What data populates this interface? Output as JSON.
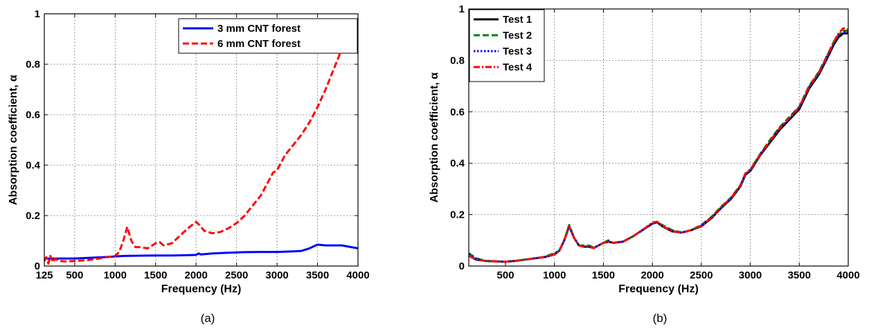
{
  "chart_data": [
    {
      "type": "line",
      "caption": "(a)",
      "xlabel": "Frequency (Hz)",
      "ylabel": "Absorption coefficient, α",
      "xlim": [
        125,
        4000
      ],
      "ylim": [
        0,
        1
      ],
      "xticks": [
        125,
        500,
        1000,
        1500,
        2000,
        2500,
        3000,
        3500,
        4000
      ],
      "yticks": [
        0,
        0.2,
        0.4,
        0.6,
        0.8,
        1
      ],
      "ytick_labels": [
        "0",
        "0.2",
        "0.4",
        "0.6",
        "0.8",
        "1"
      ],
      "grid": true,
      "legend": "top-right",
      "series": [
        {
          "name": "3 mm CNT forest",
          "color": "#0000ff",
          "style": "solid",
          "x": [
            125,
            300,
            500,
            700,
            900,
            1000,
            1100,
            1300,
            1500,
            1700,
            1900,
            2000,
            2030,
            2060,
            2200,
            2400,
            2600,
            2800,
            3000,
            3200,
            3300,
            3400,
            3500,
            3600,
            3800,
            4000
          ],
          "y": [
            0.03,
            0.03,
            0.03,
            0.033,
            0.036,
            0.038,
            0.04,
            0.041,
            0.042,
            0.042,
            0.043,
            0.044,
            0.05,
            0.046,
            0.05,
            0.053,
            0.055,
            0.056,
            0.056,
            0.058,
            0.06,
            0.07,
            0.085,
            0.082,
            0.082,
            0.07
          ]
        },
        {
          "name": "6 mm CNT forest",
          "color": "#ff0000",
          "style": "dashed",
          "x": [
            125,
            150,
            175,
            200,
            230,
            260,
            300,
            400,
            500,
            600,
            700,
            800,
            900,
            1000,
            1050,
            1100,
            1150,
            1200,
            1250,
            1300,
            1400,
            1500,
            1550,
            1600,
            1700,
            1800,
            1900,
            2000,
            2050,
            2100,
            2200,
            2300,
            2400,
            2500,
            2600,
            2700,
            2800,
            2900,
            2950,
            3000,
            3100,
            3200,
            3300,
            3400,
            3500,
            3600,
            3700,
            3800,
            3850,
            3900,
            3950,
            4000
          ],
          "y": [
            0.02,
            0.035,
            0.01,
            0.04,
            0.015,
            0.03,
            0.02,
            0.018,
            0.02,
            0.022,
            0.025,
            0.03,
            0.035,
            0.04,
            0.055,
            0.1,
            0.155,
            0.1,
            0.075,
            0.075,
            0.07,
            0.09,
            0.095,
            0.082,
            0.09,
            0.12,
            0.15,
            0.175,
            0.16,
            0.14,
            0.13,
            0.135,
            0.15,
            0.17,
            0.2,
            0.24,
            0.28,
            0.34,
            0.37,
            0.38,
            0.44,
            0.48,
            0.52,
            0.57,
            0.63,
            0.7,
            0.78,
            0.86,
            0.9,
            0.925,
            0.93,
            0.925
          ]
        }
      ]
    },
    {
      "type": "line",
      "caption": "(b)",
      "xlabel": "Frequency (Hz)",
      "ylabel": "Absorption coefficient, α",
      "xlim": [
        125,
        4000
      ],
      "ylim": [
        0,
        1
      ],
      "xticks": [
        500,
        1000,
        1500,
        2000,
        2500,
        3000,
        3500,
        4000
      ],
      "yticks": [
        0,
        0.2,
        0.4,
        0.6,
        0.8,
        1
      ],
      "ytick_labels": [
        "0",
        "0.2",
        "0.4",
        "0.6",
        "0.8",
        "1"
      ],
      "grid": true,
      "legend": "top-left",
      "series": [
        {
          "name": "Test 1",
          "color": "#000000",
          "style": "solid",
          "x": [
            125,
            200,
            300,
            400,
            500,
            600,
            700,
            800,
            900,
            1000,
            1050,
            1100,
            1150,
            1200,
            1250,
            1300,
            1350,
            1400,
            1450,
            1500,
            1550,
            1600,
            1700,
            1800,
            1900,
            2000,
            2050,
            2100,
            2200,
            2300,
            2400,
            2500,
            2600,
            2700,
            2800,
            2900,
            2950,
            3000,
            3100,
            3200,
            3300,
            3400,
            3500,
            3600,
            3700,
            3800,
            3850,
            3900,
            3950,
            4000
          ],
          "y": [
            0.04,
            0.025,
            0.02,
            0.018,
            0.017,
            0.02,
            0.025,
            0.03,
            0.035,
            0.045,
            0.06,
            0.1,
            0.155,
            0.11,
            0.08,
            0.075,
            0.075,
            0.07,
            0.08,
            0.09,
            0.095,
            0.09,
            0.095,
            0.115,
            0.14,
            0.165,
            0.17,
            0.155,
            0.135,
            0.13,
            0.14,
            0.155,
            0.185,
            0.225,
            0.26,
            0.31,
            0.355,
            0.37,
            0.43,
            0.48,
            0.53,
            0.57,
            0.61,
            0.69,
            0.745,
            0.82,
            0.86,
            0.89,
            0.905,
            0.905
          ]
        },
        {
          "name": "Test 2",
          "color": "#008000",
          "style": "dashed",
          "x": [
            125,
            200,
            300,
            400,
            500,
            600,
            700,
            800,
            900,
            1000,
            1050,
            1100,
            1150,
            1200,
            1250,
            1300,
            1350,
            1400,
            1450,
            1500,
            1550,
            1600,
            1700,
            1800,
            1900,
            2000,
            2050,
            2100,
            2200,
            2300,
            2400,
            2500,
            2600,
            2700,
            2800,
            2900,
            2950,
            3000,
            3100,
            3200,
            3300,
            3400,
            3500,
            3600,
            3700,
            3800,
            3850,
            3900,
            3950,
            4000
          ],
          "y": [
            0.05,
            0.03,
            0.02,
            0.018,
            0.017,
            0.02,
            0.025,
            0.03,
            0.036,
            0.05,
            0.06,
            0.1,
            0.16,
            0.11,
            0.08,
            0.08,
            0.08,
            0.072,
            0.08,
            0.09,
            0.1,
            0.09,
            0.095,
            0.115,
            0.14,
            0.165,
            0.17,
            0.16,
            0.14,
            0.13,
            0.14,
            0.16,
            0.19,
            0.23,
            0.265,
            0.315,
            0.36,
            0.375,
            0.435,
            0.49,
            0.54,
            0.58,
            0.62,
            0.7,
            0.755,
            0.83,
            0.87,
            0.9,
            0.915,
            0.915
          ]
        },
        {
          "name": "Test 3",
          "color": "#0000ff",
          "style": "dotted",
          "x": [
            125,
            200,
            300,
            400,
            500,
            600,
            700,
            800,
            900,
            1000,
            1050,
            1100,
            1150,
            1200,
            1250,
            1300,
            1350,
            1400,
            1450,
            1500,
            1550,
            1600,
            1700,
            1800,
            1900,
            2000,
            2050,
            2100,
            2200,
            2300,
            2400,
            2500,
            2600,
            2700,
            2800,
            2900,
            2950,
            3000,
            3100,
            3200,
            3300,
            3400,
            3500,
            3600,
            3700,
            3800,
            3850,
            3900,
            3950,
            4000
          ],
          "y": [
            0.045,
            0.028,
            0.02,
            0.018,
            0.017,
            0.02,
            0.025,
            0.03,
            0.035,
            0.047,
            0.06,
            0.1,
            0.155,
            0.11,
            0.08,
            0.076,
            0.077,
            0.07,
            0.08,
            0.09,
            0.097,
            0.09,
            0.095,
            0.115,
            0.14,
            0.165,
            0.17,
            0.157,
            0.137,
            0.13,
            0.14,
            0.157,
            0.187,
            0.227,
            0.262,
            0.312,
            0.357,
            0.372,
            0.432,
            0.485,
            0.535,
            0.575,
            0.615,
            0.695,
            0.75,
            0.825,
            0.865,
            0.895,
            0.91,
            0.91
          ]
        },
        {
          "name": "Test 4",
          "color": "#ff0000",
          "style": "dashdot",
          "x": [
            125,
            200,
            300,
            400,
            500,
            600,
            700,
            800,
            900,
            1000,
            1050,
            1100,
            1150,
            1200,
            1250,
            1300,
            1350,
            1400,
            1450,
            1500,
            1550,
            1600,
            1700,
            1800,
            1900,
            2000,
            2050,
            2100,
            2200,
            2300,
            2400,
            2500,
            2600,
            2700,
            2800,
            2900,
            2950,
            3000,
            3100,
            3200,
            3300,
            3400,
            3500,
            3600,
            3700,
            3800,
            3850,
            3900,
            3950,
            4000
          ],
          "y": [
            0.04,
            0.025,
            0.02,
            0.018,
            0.017,
            0.02,
            0.025,
            0.03,
            0.035,
            0.046,
            0.06,
            0.1,
            0.155,
            0.11,
            0.08,
            0.075,
            0.076,
            0.07,
            0.08,
            0.09,
            0.096,
            0.09,
            0.095,
            0.115,
            0.14,
            0.17,
            0.172,
            0.157,
            0.136,
            0.13,
            0.14,
            0.157,
            0.187,
            0.228,
            0.263,
            0.313,
            0.36,
            0.375,
            0.433,
            0.486,
            0.536,
            0.577,
            0.618,
            0.698,
            0.752,
            0.83,
            0.87,
            0.905,
            0.925,
            0.92
          ]
        }
      ]
    }
  ]
}
